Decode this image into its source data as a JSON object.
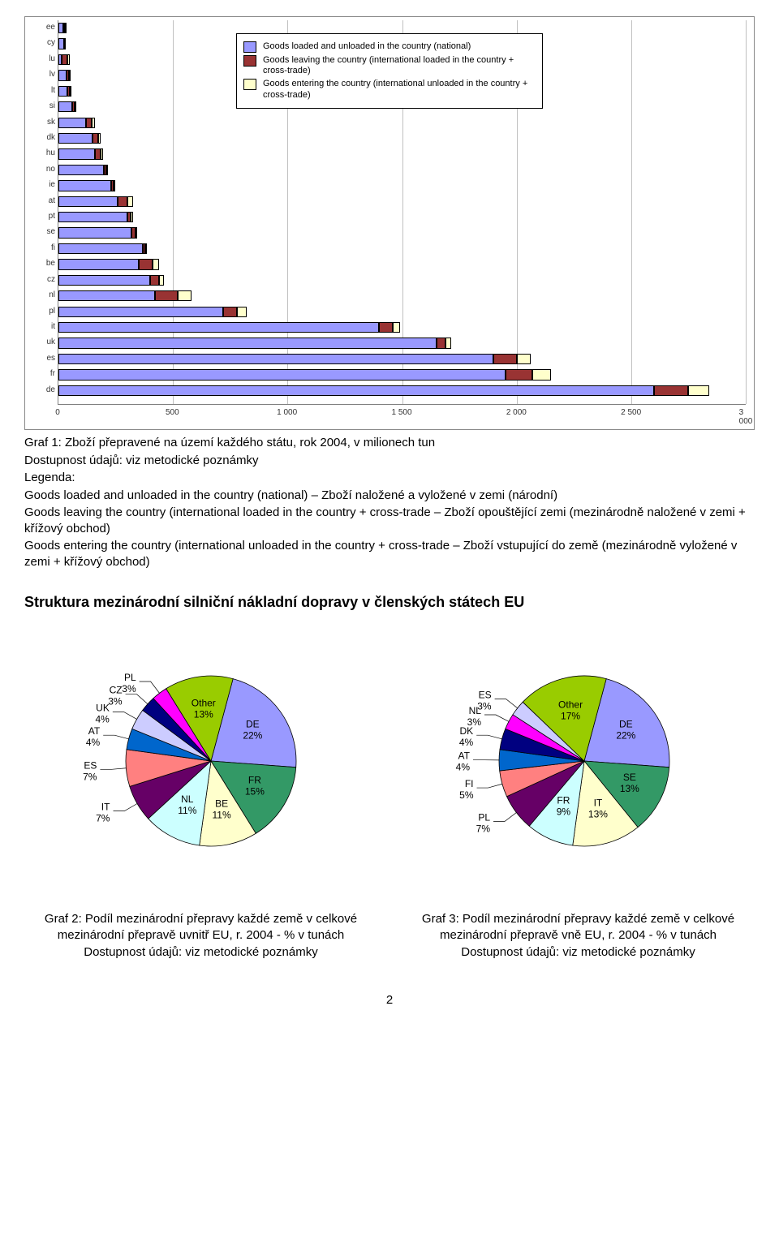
{
  "bar_chart": {
    "type": "bar",
    "xlim": [
      0,
      3000
    ],
    "xtick_step": 500,
    "background_color": "#ffffff",
    "grid_color": "#c0c0c0",
    "axis_color": "#808080",
    "font_size": 10,
    "legend": {
      "s1": "Goods loaded and unloaded in the country (national)",
      "s2": "Goods leaving the country (international loaded in the country + cross-trade)",
      "s3": "Goods entering the country (international unloaded in the country + cross-trade)"
    },
    "series_colors": {
      "s1": "#9999ff",
      "s2": "#993333",
      "s3": "#ffffcc"
    },
    "rows": [
      {
        "code": "ee",
        "s1": 20,
        "s2": 10,
        "s3": 5
      },
      {
        "code": "cy",
        "s1": 25,
        "s2": 0,
        "s3": 0
      },
      {
        "code": "lu",
        "s1": 15,
        "s2": 25,
        "s3": 10
      },
      {
        "code": "lv",
        "s1": 35,
        "s2": 10,
        "s3": 5
      },
      {
        "code": "lt",
        "s1": 40,
        "s2": 8,
        "s3": 5
      },
      {
        "code": "si",
        "s1": 60,
        "s2": 10,
        "s3": 5
      },
      {
        "code": "sk",
        "s1": 120,
        "s2": 25,
        "s3": 15
      },
      {
        "code": "dk",
        "s1": 150,
        "s2": 25,
        "s3": 10
      },
      {
        "code": "hu",
        "s1": 160,
        "s2": 25,
        "s3": 10
      },
      {
        "code": "no",
        "s1": 200,
        "s2": 10,
        "s3": 5
      },
      {
        "code": "ie",
        "s1": 230,
        "s2": 10,
        "s3": 5
      },
      {
        "code": "at",
        "s1": 260,
        "s2": 40,
        "s3": 25
      },
      {
        "code": "pt",
        "s1": 300,
        "s2": 15,
        "s3": 10
      },
      {
        "code": "se",
        "s1": 320,
        "s2": 15,
        "s3": 10
      },
      {
        "code": "fi",
        "s1": 370,
        "s2": 10,
        "s3": 5
      },
      {
        "code": "be",
        "s1": 350,
        "s2": 60,
        "s3": 30
      },
      {
        "code": "cz",
        "s1": 400,
        "s2": 40,
        "s3": 20
      },
      {
        "code": "nl",
        "s1": 420,
        "s2": 100,
        "s3": 60
      },
      {
        "code": "pl",
        "s1": 720,
        "s2": 60,
        "s3": 40
      },
      {
        "code": "it",
        "s1": 1400,
        "s2": 60,
        "s3": 30
      },
      {
        "code": "uk",
        "s1": 1650,
        "s2": 40,
        "s3": 25
      },
      {
        "code": "es",
        "s1": 1900,
        "s2": 100,
        "s3": 60
      },
      {
        "code": "fr",
        "s1": 1950,
        "s2": 120,
        "s3": 80
      },
      {
        "code": "de",
        "s1": 2600,
        "s2": 150,
        "s3": 90
      }
    ]
  },
  "caption1": {
    "title": "Graf 1: Zboží přepravené na území každého státu, rok 2004, v milionech tun",
    "avail": "Dostupnost údajů: viz metodické poznámky",
    "legenda": "Legenda:",
    "l1": "Goods loaded and unloaded in the country (national) – Zboží naložené a vyložené v zemi (národní)",
    "l2": "Goods leaving the country (international loaded in the country + cross-trade – Zboží opouštějící zemi (mezinárodně naložené v zemi + křížový obchod)",
    "l3": "Goods entering the country (international unloaded in the country + cross-trade – Zboží vstupující do země (mezinárodně vyložené v zemi + křížový obchod)"
  },
  "section_heading": "Struktura mezinárodní silniční nákladní dopravy v členských státech EU",
  "pie_colors": {
    "DE": "#9999ff",
    "FR": "#339966",
    "BE": "#ffffcc",
    "NL": "#ccffff",
    "IT": "#660066",
    "ES": "#ff8080",
    "AT": "#0066cc",
    "UK": "#ccccff",
    "CZ": "#000080",
    "PL": "#ff00ff",
    "Other": "#99cc00",
    "SE": "#339966",
    "FI": "#ff8080",
    "DK": "#000080",
    "NL2": "#ff00ff",
    "ES2": "#ccccff",
    "IT2": "#ffffcc",
    "FR2": "#ccffff",
    "PL2": "#660066",
    "AT2": "#0066cc",
    "Other2": "#99cc00"
  },
  "pie1": {
    "type": "pie",
    "title": "",
    "slices": [
      {
        "label": "DE",
        "pct": 22,
        "color": "#9999ff"
      },
      {
        "label": "FR",
        "pct": 15,
        "color": "#339966"
      },
      {
        "label": "BE",
        "pct": 11,
        "color": "#ffffcc"
      },
      {
        "label": "NL",
        "pct": 11,
        "color": "#ccffff"
      },
      {
        "label": "IT",
        "pct": 7,
        "color": "#660066"
      },
      {
        "label": "ES",
        "pct": 7,
        "color": "#ff8080"
      },
      {
        "label": "AT",
        "pct": 4,
        "color": "#0066cc"
      },
      {
        "label": "UK",
        "pct": 4,
        "color": "#ccccff"
      },
      {
        "label": "CZ",
        "pct": 3,
        "color": "#000080"
      },
      {
        "label": "PL",
        "pct": 3,
        "color": "#ff00ff"
      },
      {
        "label": "Other",
        "pct": 13,
        "color": "#99cc00"
      }
    ]
  },
  "pie2": {
    "type": "pie",
    "title": "",
    "slices": [
      {
        "label": "DE",
        "pct": 22,
        "color": "#9999ff"
      },
      {
        "label": "SE",
        "pct": 13,
        "color": "#339966"
      },
      {
        "label": "IT",
        "pct": 13,
        "color": "#ffffcc"
      },
      {
        "label": "FR",
        "pct": 9,
        "color": "#ccffff"
      },
      {
        "label": "PL",
        "pct": 7,
        "color": "#660066"
      },
      {
        "label": "FI",
        "pct": 5,
        "color": "#ff8080"
      },
      {
        "label": "AT",
        "pct": 4,
        "color": "#0066cc"
      },
      {
        "label": "DK",
        "pct": 4,
        "color": "#000080"
      },
      {
        "label": "NL",
        "pct": 3,
        "color": "#ff00ff"
      },
      {
        "label": "ES",
        "pct": 3,
        "color": "#ccccff"
      },
      {
        "label": "Other",
        "pct": 17,
        "color": "#99cc00"
      }
    ]
  },
  "caption2": {
    "title": "Graf 2: Podíl mezinárodní přepravy každé země v celkové mezinárodní přepravě uvnitř EU, r. 2004 - % v tunách",
    "avail": "Dostupnost údajů: viz metodické poznámky"
  },
  "caption3": {
    "title": "Graf 3:  Podíl mezinárodní přepravy každé země v celkové mezinárodní přepravě vně EU, r. 2004 - % v tunách",
    "avail": "Dostupnost údajů: viz metodické poznámky"
  },
  "page_number": "2"
}
